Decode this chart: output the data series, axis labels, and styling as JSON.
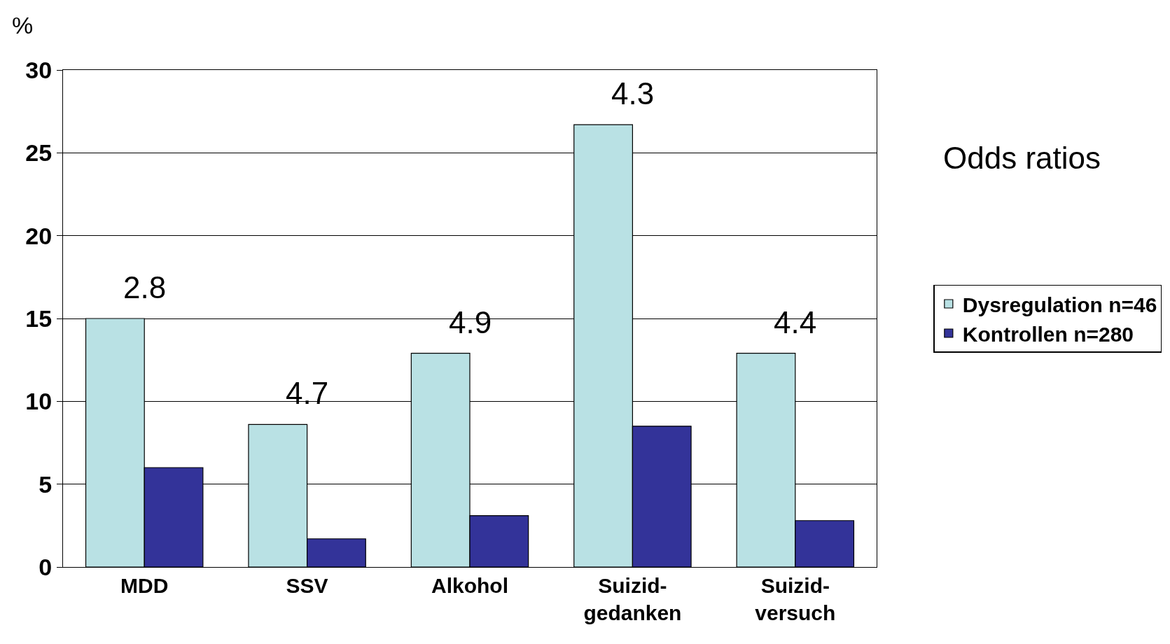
{
  "chart_data": {
    "type": "bar",
    "ylabel": "%",
    "categories": [
      "MDD",
      "SSV",
      "Alkohol",
      "Suizid-\ngedanken",
      "Suizid-\nversuch"
    ],
    "series": [
      {
        "name": "Dysregulation n=46",
        "color": "#b9e1e4",
        "values": [
          15,
          8.6,
          12.9,
          26.7,
          12.9
        ]
      },
      {
        "name": "Kontrollen n=280",
        "color": "#333399",
        "values": [
          6,
          1.7,
          3.1,
          8.5,
          2.8
        ]
      }
    ],
    "ylim": [
      0,
      30
    ],
    "yticks": [
      0,
      5,
      10,
      15,
      20,
      25,
      30
    ],
    "grid": "y",
    "legend": "right",
    "annotations": [
      "Odds ratios",
      "2.8",
      "4.7",
      "4.9",
      "4.3",
      "4.4"
    ]
  }
}
